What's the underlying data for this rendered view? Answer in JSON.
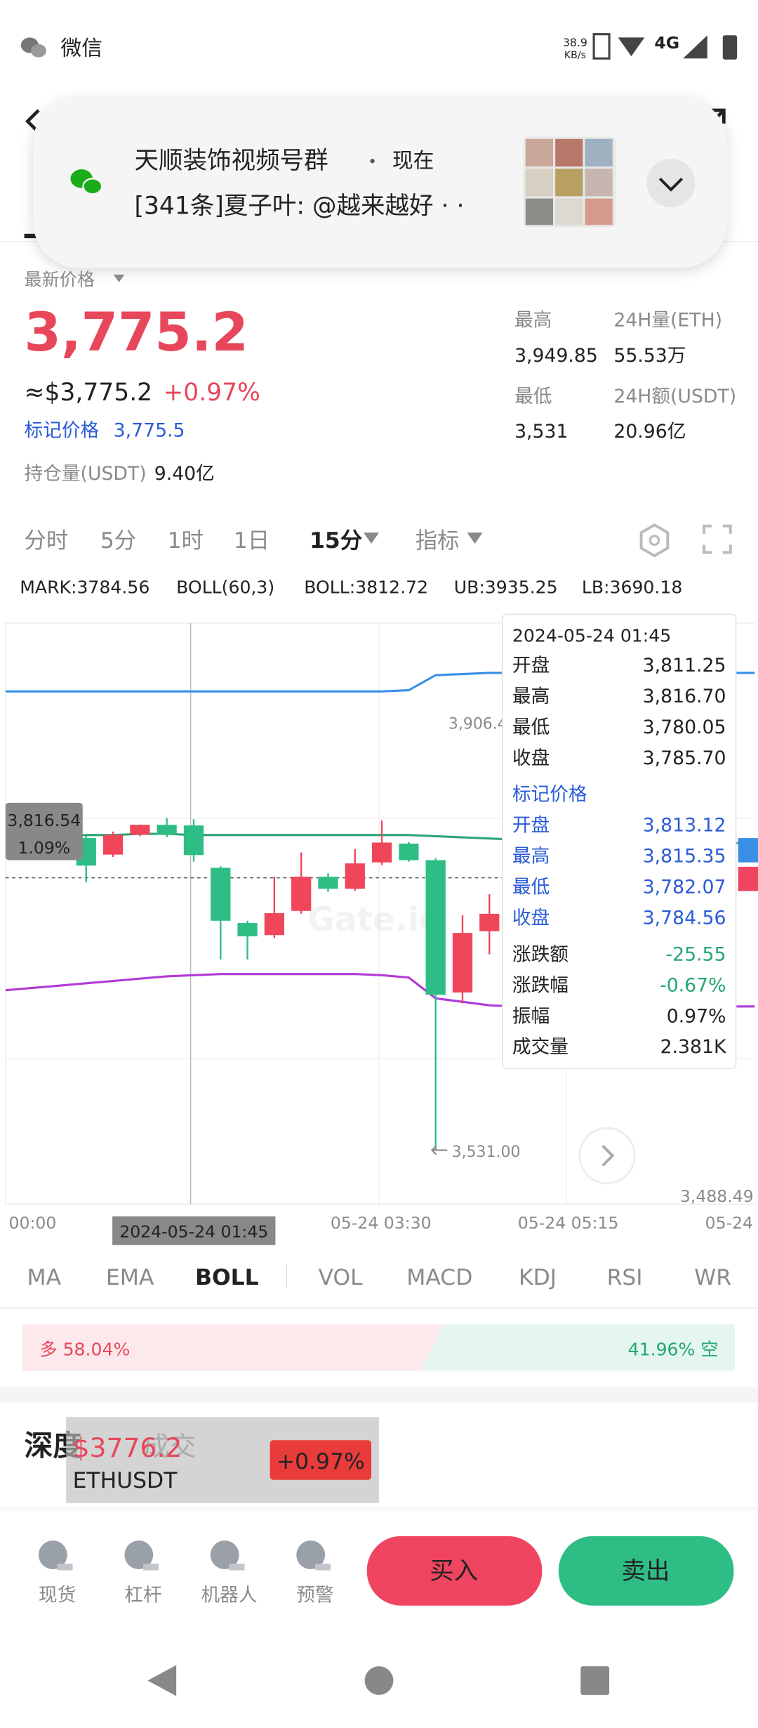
{
  "status_bar": {
    "app": "微信",
    "speed": "38.9",
    "speed_unit": "KB/s",
    "network": "4G"
  },
  "notification": {
    "group": "天顺装饰视频号群",
    "time": "现在",
    "message": "[341条]夏子叶: @越来越好 · ·"
  },
  "ticker": {
    "price_label": "最新价格",
    "price": "3,775.2",
    "usd_price": "≈$3,775.2",
    "change": "+0.97%",
    "mark_label": "标记价格",
    "mark_price": "3,775.5",
    "oi_label": "持仓量(USDT)",
    "oi_value": "9.40亿"
  },
  "stats": [
    {
      "label": "最高",
      "value": "3,949.85"
    },
    {
      "label": "24H量(ETH)",
      "value": "55.53万"
    },
    {
      "label": "最低",
      "value": "3,531"
    },
    {
      "label": "24H额(USDT)",
      "value": "20.96亿"
    }
  ],
  "intervals": [
    "分时",
    "5分",
    "1时",
    "1日",
    "15分",
    "指标"
  ],
  "indicators": [
    "MARK:3784.56",
    "BOLL(60,3)",
    "BOLL:3812.72",
    "UB:3935.25",
    "LB:3690.18"
  ],
  "chart": {
    "ylim": [
      3484.3,
      3986
    ],
    "candles": [
      {
        "open": 3800.4,
        "high": 3802,
        "low": 3762.3,
        "close": 3776.6
      },
      {
        "open": 3786.1,
        "high": 3806,
        "low": 3784,
        "close": 3803.2
      },
      {
        "open": 3803.2,
        "high": 3812,
        "low": 3802,
        "close": 3811.8
      },
      {
        "open": 3811.8,
        "high": 3817.5,
        "low": 3801,
        "close": 3803.2
      },
      {
        "open": 3811.25,
        "high": 3816.7,
        "low": 3780.05,
        "close": 3785.7
      },
      {
        "open": 3774.7,
        "high": 3776,
        "low": 3695.6,
        "close": 3729
      },
      {
        "open": 3727,
        "high": 3729,
        "low": 3695.6,
        "close": 3715.6
      },
      {
        "open": 3716.6,
        "high": 3767,
        "low": 3714,
        "close": 3735.6
      },
      {
        "open": 3737.5,
        "high": 3788,
        "low": 3735,
        "close": 3767
      },
      {
        "open": 3767,
        "high": 3770,
        "low": 3754,
        "close": 3756.6
      },
      {
        "open": 3756.6,
        "high": 3790.8,
        "low": 3755,
        "close": 3778.5
      },
      {
        "open": 3779.4,
        "high": 3815.6,
        "low": 3777,
        "close": 3796.5
      },
      {
        "open": 3795.6,
        "high": 3797,
        "low": 3780,
        "close": 3781.3
      },
      {
        "open": 3781.3,
        "high": 3783,
        "low": 3531,
        "close": 3665.2
      },
      {
        "open": 3667.1,
        "high": 3733.7,
        "low": 3657.6,
        "close": 3718.5
      },
      {
        "open": 3720,
        "high": 3752,
        "low": 3700,
        "close": 3735
      }
    ],
    "ub": [
      3927,
      3927,
      3927,
      3927,
      3927,
      3927,
      3927,
      3927,
      3927,
      3927,
      3927,
      3927,
      3927,
      3927,
      3927,
      3928,
      3941,
      3942,
      3943,
      3943,
      3943,
      3943,
      3943,
      3943,
      3943,
      3943,
      3943,
      3943,
      3943
    ],
    "boll": [
      3801,
      3802,
      3802,
      3803,
      3803,
      3804,
      3804,
      3803,
      3803,
      3803,
      3803,
      3803,
      3803,
      3803,
      3803,
      3803,
      3802,
      3801,
      3800,
      3799,
      3799,
      3798,
      3798,
      3798,
      3797,
      3797,
      3797,
      3796,
      3796
    ],
    "lb": [
      3669,
      3671,
      3673,
      3675,
      3677,
      3679,
      3681,
      3682,
      3683,
      3683,
      3683,
      3683,
      3683,
      3683,
      3682,
      3680,
      3662,
      3659,
      3656,
      3655,
      3655,
      3655,
      3655,
      3655,
      3655,
      3655,
      3655,
      3655,
      3655
    ],
    "high_marker": "3,906.4",
    "low_marker": "3,531.00",
    "price_tag": "3,816.54",
    "change_tag": "1.09%",
    "axis_bottom": "3,488.49",
    "x_labels": [
      "00:00",
      "05-24 03:30",
      "05-24 05:15",
      "05-24"
    ],
    "crosshair_label": "2024-05-24 01:45",
    "watermark": "Gate.io"
  },
  "tooltip": {
    "time": "2024-05-24 01:45",
    "ohlc": [
      [
        "开盘",
        "3,811.25"
      ],
      [
        "最高",
        "3,816.70"
      ],
      [
        "最低",
        "3,780.05"
      ],
      [
        "收盘",
        "3,785.70"
      ]
    ],
    "mark_title": "标记价格",
    "mark": [
      [
        "开盘",
        "3,813.12"
      ],
      [
        "最高",
        "3,815.35"
      ],
      [
        "最低",
        "3,782.07"
      ],
      [
        "收盘",
        "3,784.56"
      ]
    ],
    "extra": [
      [
        "涨跌额",
        "-25.55"
      ],
      [
        "涨跌幅",
        "-0.67%"
      ],
      [
        "振幅",
        "0.97%"
      ],
      [
        "成交量",
        "2.381K"
      ]
    ]
  },
  "indicator_tabs": [
    "MA",
    "EMA",
    "BOLL",
    "VOL",
    "MACD",
    "KDJ",
    "RSI",
    "WR"
  ],
  "long_short": {
    "long": "多 58.04%",
    "short": "41.96% 空"
  },
  "depth": {
    "title": "深度",
    "trades": "成交",
    "widget_price": "$3776.2",
    "widget_change": "+0.97%",
    "widget_symbol": "ETHUSDT"
  },
  "bottom_nav": [
    "现货",
    "杠杆",
    "机器人",
    "预警"
  ],
  "buy": "买入",
  "sell": "卖出"
}
